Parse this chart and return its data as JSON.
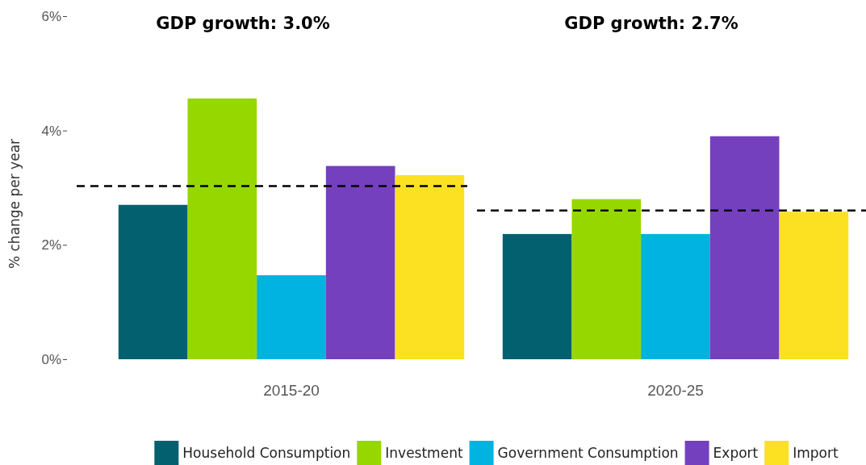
{
  "chart_data": {
    "type": "bar",
    "ylabel": "% change per year",
    "categories": [
      "2015-20",
      "2020-25"
    ],
    "series": [
      {
        "name": "Household Consumption",
        "color": "#03606e",
        "values": [
          2.7,
          2.19
        ]
      },
      {
        "name": "Investment",
        "color": "#97d700",
        "values": [
          4.56,
          2.8
        ]
      },
      {
        "name": "Government Consumption",
        "color": "#00b3e0",
        "values": [
          1.47,
          2.19
        ]
      },
      {
        "name": "Export",
        "color": "#7540bd",
        "values": [
          3.38,
          3.9
        ]
      },
      {
        "name": "Import",
        "color": "#fbe122",
        "values": [
          3.22,
          2.58
        ]
      }
    ],
    "ref_lines": [
      {
        "axis": "y",
        "value": 3.03,
        "color": "#000000",
        "line_style": "dashed"
      },
      {
        "axis": "y",
        "value": 2.6,
        "color": "#000000",
        "line_style": "dashed"
      }
    ],
    "ylim": [
      0,
      6
    ],
    "yticks": [
      {
        "value": 0,
        "label": "0%"
      },
      {
        "value": 2,
        "label": "2%"
      },
      {
        "value": 4,
        "label": "4%"
      },
      {
        "value": 6,
        "label": "6%"
      }
    ],
    "annotations": [
      "GDP growth: 3.0%",
      "GDP growth: 2.7%"
    ],
    "legend": "bottom"
  }
}
